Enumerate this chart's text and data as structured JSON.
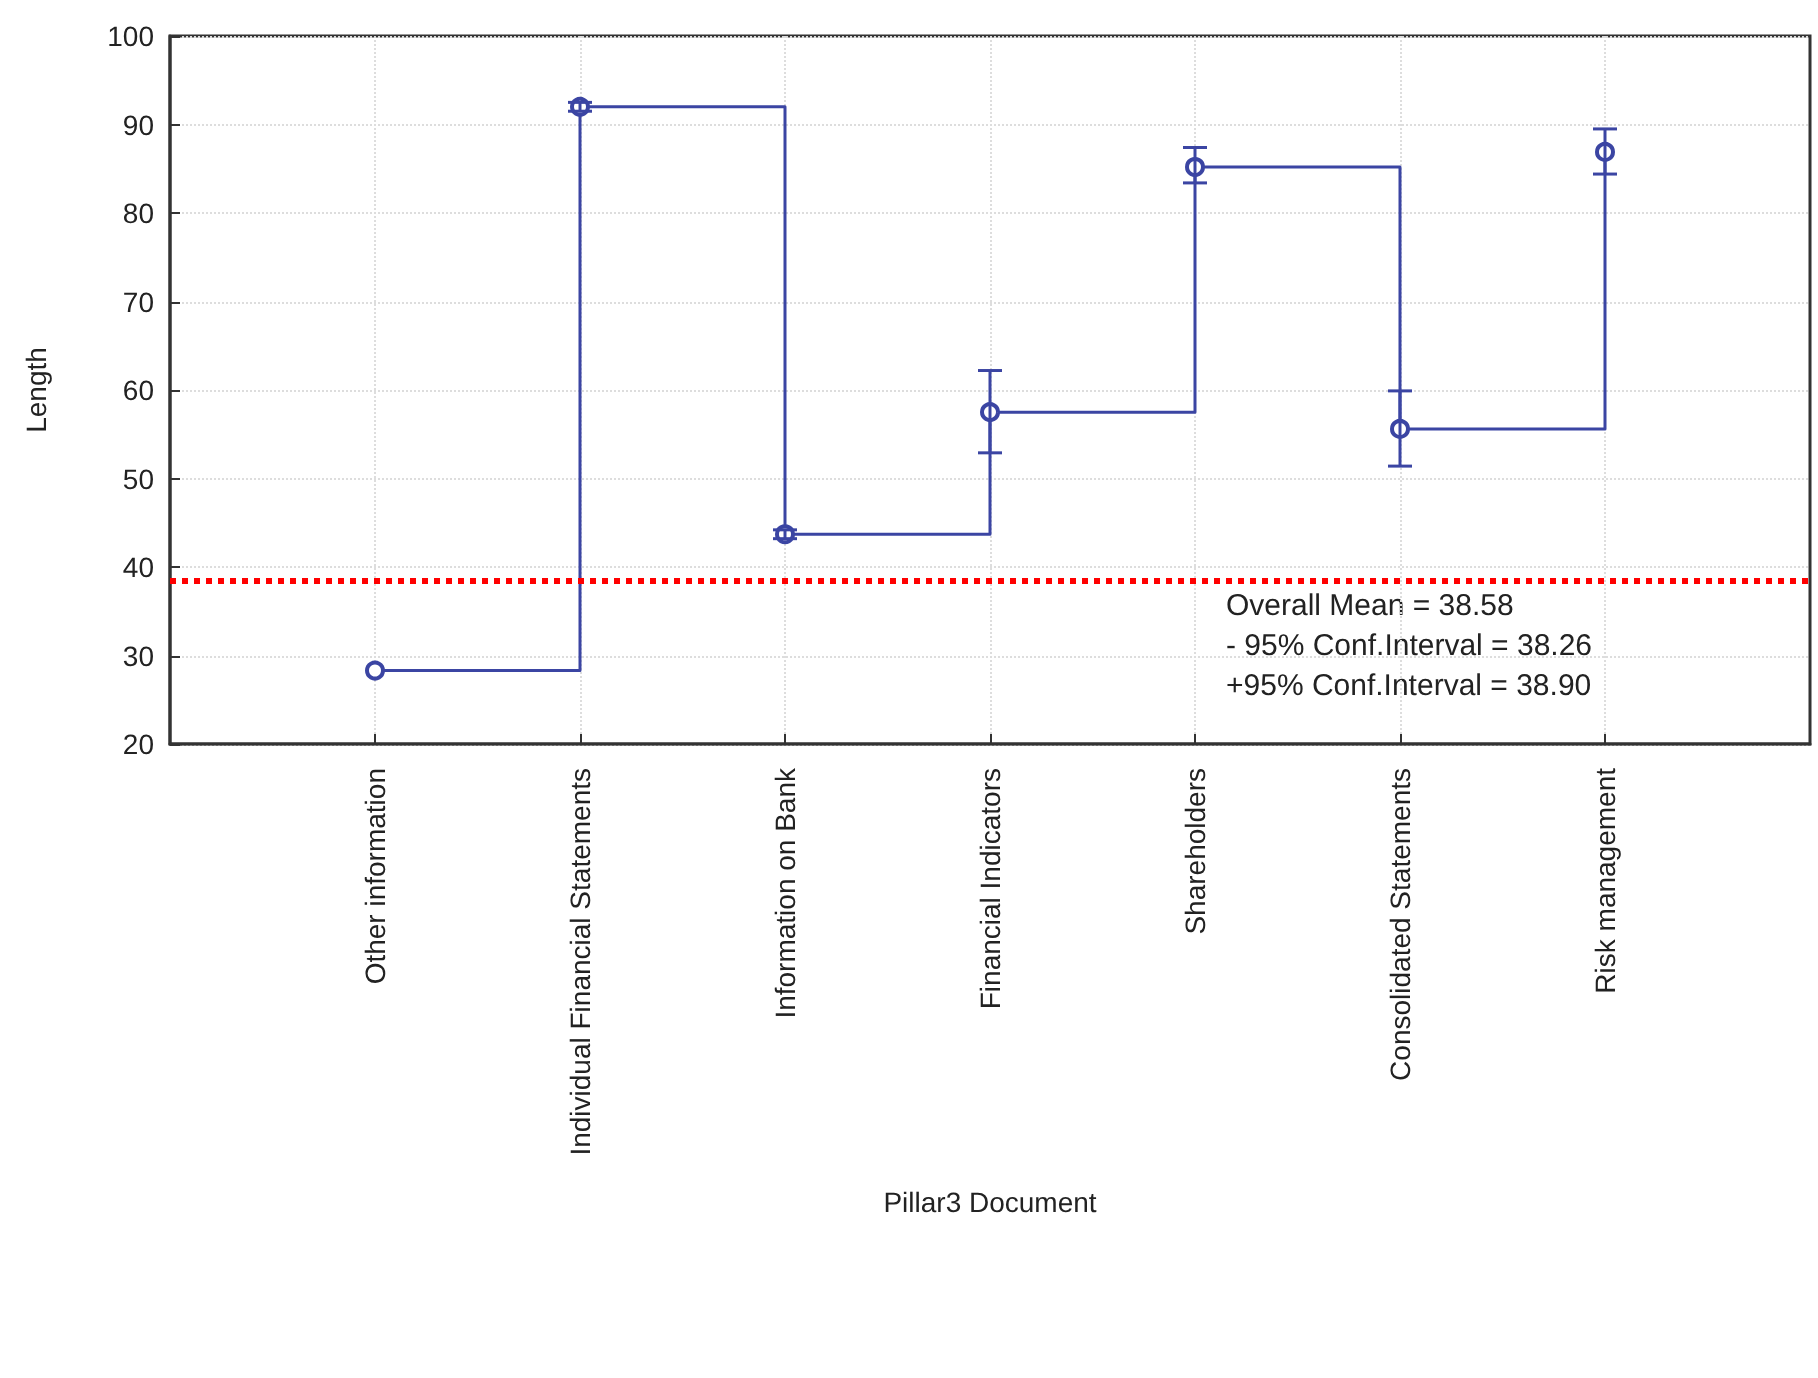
{
  "chart_data": {
    "type": "step",
    "xlabel": "Pillar3 Document",
    "ylabel": "Length",
    "categories": [
      "Other information",
      "Individual Financial Statements",
      "Information on Bank",
      "Financial Indicators",
      "Shareholders",
      "Consolidated Statements",
      "Risk management"
    ],
    "series": [
      {
        "color": "#3b45a3",
        "values": [
          28.3,
          92.0,
          43.7,
          57.5,
          85.2,
          55.6,
          86.9
        ],
        "errors": [
          null,
          0.5,
          0.5,
          [
            52.9,
            62.2
          ],
          [
            83.4,
            87.4
          ],
          [
            51.4,
            59.9
          ],
          [
            84.4,
            89.5
          ]
        ]
      }
    ],
    "ylim": [
      20,
      100
    ],
    "yticks": [
      20,
      30,
      40,
      50,
      60,
      70,
      80,
      90,
      100
    ],
    "grid": true,
    "marker": "circle",
    "line_style": "solid",
    "ref_lines": [
      {
        "axis": "y",
        "value": 38.58,
        "color": "#ff0000",
        "line_style": "dotted"
      }
    ],
    "annotations": [
      "Overall Mean = 38.58",
      "- 95% Conf.Interval = 38.26",
      "+95% Conf.Interval = 38.90"
    ]
  }
}
